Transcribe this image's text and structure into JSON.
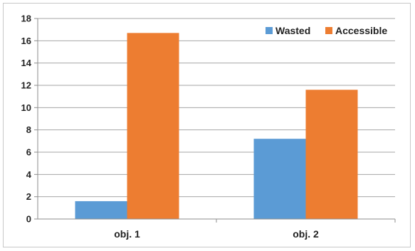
{
  "chart_data": {
    "type": "bar",
    "categories": [
      "obj. 1",
      "obj. 2"
    ],
    "series": [
      {
        "name": "Wasted",
        "values": [
          1.6,
          7.2
        ],
        "color": "#5b9bd5"
      },
      {
        "name": "Accessible",
        "values": [
          16.7,
          11.6
        ],
        "color": "#ed7d31"
      }
    ],
    "ylim": [
      0,
      18
    ],
    "yticks": [
      "0",
      "2",
      "4",
      "6",
      "8",
      "10",
      "12",
      "14",
      "16",
      "18"
    ],
    "grid": true,
    "legend_position": "top-right"
  }
}
